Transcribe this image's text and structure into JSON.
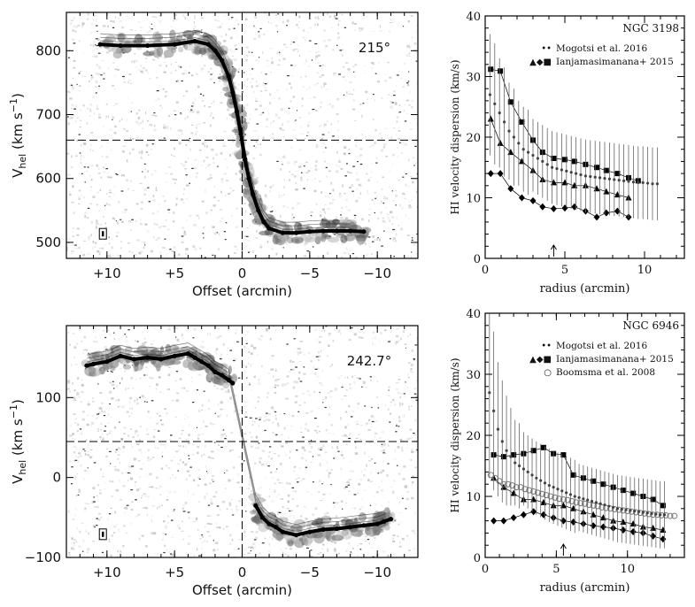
{
  "chart_data": [
    {
      "type": "position-velocity",
      "panel": "top-left",
      "angle_label": "215°",
      "xlabel": "Offset (arcmin)",
      "ylabel_main": "V",
      "ylabel_sub": "hel",
      "ylabel_units": " (km s",
      "ylabel_exp": "−1",
      "ylabel_close": ")",
      "x_ticks": [
        10,
        5,
        0,
        -5,
        -10
      ],
      "x_tick_labels": [
        "+10",
        "+5",
        "0",
        "−5",
        "−10"
      ],
      "xlim": [
        13,
        -13
      ],
      "y_ticks": [
        500,
        600,
        700,
        800
      ],
      "y_tick_labels": [
        "500",
        "600",
        "700",
        "800"
      ],
      "ylim": [
        475,
        860
      ],
      "systemic_velocity": 660,
      "rotation_curve": {
        "x": [
          10.5,
          9,
          7,
          5,
          3.5,
          2.5,
          2,
          1.5,
          1,
          0.7,
          0.4,
          0.1,
          -0.2,
          -0.5,
          -0.8,
          -1.2,
          -1.6,
          -2,
          -3,
          -4,
          -5,
          -6,
          -7,
          -8,
          -9
        ],
        "y": [
          810,
          808,
          808,
          810,
          815,
          810,
          800,
          785,
          760,
          735,
          705,
          670,
          630,
          600,
          575,
          550,
          532,
          522,
          515,
          515,
          517,
          518,
          518,
          518,
          517
        ]
      },
      "grid": false
    },
    {
      "type": "scatter",
      "panel": "top-right",
      "title": "NGC 3198",
      "xlabel": "radius (arcmin)",
      "ylabel": "HI velocity dispersion (km/s)",
      "x_ticks": [
        0,
        5,
        10
      ],
      "y_ticks": [
        0,
        10,
        20,
        30,
        40
      ],
      "xlim": [
        0,
        12.5
      ],
      "ylim": [
        0,
        40
      ],
      "arrow_x": 4.3,
      "legend": [
        {
          "label": "Mogotsi et al. 2016",
          "symbols": "••"
        },
        {
          "label": "Ianjamasimanana+ 2015",
          "symbols": "▲◆■"
        }
      ],
      "legend_position": "top-right",
      "series": [
        {
          "marker": "square",
          "x": [
            0.35,
            0.95,
            1.6,
            2.3,
            3.0,
            3.6,
            4.3,
            5.0,
            5.6,
            6.3,
            7.0,
            7.6,
            8.3,
            9.0,
            9.6
          ],
          "y": [
            31.2,
            30.9,
            25.8,
            22.5,
            19.5,
            17.5,
            16.5,
            16.3,
            16.0,
            15.5,
            15.0,
            14.5,
            14.0,
            13.3,
            12.8
          ]
        },
        {
          "marker": "triangle",
          "x": [
            0.35,
            0.95,
            1.6,
            2.3,
            3.0,
            3.6,
            4.3,
            5.0,
            5.6,
            6.3,
            7.0,
            7.6,
            8.3,
            9.0
          ],
          "y": [
            23,
            19,
            17.5,
            16,
            14.5,
            13,
            12.5,
            12.5,
            12,
            12,
            11.5,
            11,
            10.5,
            10
          ]
        },
        {
          "marker": "diamond",
          "x": [
            0.35,
            0.95,
            1.6,
            2.3,
            3.0,
            3.6,
            4.3,
            5.0,
            5.6,
            6.3,
            7.0,
            7.6,
            8.3,
            9.0
          ],
          "y": [
            14,
            14,
            11.5,
            10,
            9.5,
            8.5,
            8.2,
            8.3,
            8.5,
            7.8,
            6.8,
            7.5,
            7.8,
            6.8
          ]
        },
        {
          "marker": "dot",
          "x": [
            0.3,
            0.6,
            0.9,
            1.2,
            1.5,
            1.8,
            2.1,
            2.4,
            2.7,
            3.0,
            3.3,
            3.6,
            3.9,
            4.2,
            4.5,
            4.8,
            5.1,
            5.4,
            5.7,
            6.0,
            6.3,
            6.6,
            6.9,
            7.2,
            7.5,
            7.8,
            8.1,
            8.4,
            8.7,
            9.0,
            9.3,
            9.6,
            9.9,
            10.2,
            10.5,
            10.8
          ],
          "y": [
            27,
            25.5,
            24,
            22.5,
            21,
            20,
            19,
            18,
            17.5,
            17,
            16.5,
            16,
            15.5,
            15,
            14.8,
            14.6,
            14.4,
            14.2,
            14.0,
            13.8,
            13.6,
            13.5,
            13.4,
            13.3,
            13.2,
            13.1,
            13.0,
            12.9,
            12.8,
            12.7,
            12.6,
            12.5,
            12.5,
            12.4,
            12.3,
            12.3
          ],
          "err": [
            10,
            10,
            9,
            9,
            8,
            8,
            7,
            7,
            7,
            6,
            6,
            6,
            6,
            6,
            6,
            6,
            6,
            6,
            6,
            6,
            6,
            6,
            6,
            6,
            6,
            6,
            6,
            6,
            6,
            6,
            6,
            6,
            6,
            6,
            6,
            6
          ]
        }
      ],
      "grid": false
    },
    {
      "type": "position-velocity",
      "panel": "bottom-left",
      "angle_label": "242.7°",
      "xlabel": "Offset (arcmin)",
      "ylabel_main": "V",
      "ylabel_sub": "hel",
      "ylabel_units": " (km s",
      "ylabel_exp": "−1",
      "ylabel_close": ")",
      "x_ticks": [
        10,
        5,
        0,
        -5,
        -10
      ],
      "x_tick_labels": [
        "+10",
        "+5",
        "0",
        "−5",
        "−10"
      ],
      "xlim": [
        13,
        -13
      ],
      "y_ticks": [
        -100,
        0,
        100
      ],
      "y_tick_labels": [
        "−100",
        "0",
        "100"
      ],
      "ylim": [
        -100,
        190
      ],
      "systemic_velocity": 45,
      "rotation_curve": {
        "x": [
          11.5,
          11,
          10,
          9,
          8,
          7,
          6,
          5,
          4,
          3.5,
          3,
          2.5,
          2,
          1.5,
          1,
          0.7,
          -1,
          -1.5,
          -2,
          -2.5,
          -3,
          -4,
          -5,
          -6,
          -7,
          -8,
          -9,
          -10,
          -10.5,
          -11
        ],
        "y": [
          140,
          142,
          145,
          152,
          148,
          150,
          148,
          152,
          155,
          150,
          145,
          140,
          132,
          128,
          122,
          118,
          -35,
          -50,
          -58,
          -62,
          -68,
          -72,
          -68,
          -65,
          -64,
          -62,
          -60,
          -58,
          -55,
          -52
        ]
      },
      "grid": false
    },
    {
      "type": "scatter",
      "panel": "bottom-right",
      "title": "NGC 6946",
      "xlabel": "radius (arcmin)",
      "ylabel": "HI velocity dispersion (km/s)",
      "x_ticks": [
        0,
        5,
        10
      ],
      "y_ticks": [
        0,
        10,
        20,
        30,
        40
      ],
      "xlim": [
        0,
        14
      ],
      "ylim": [
        0,
        40
      ],
      "arrow_x": 5.5,
      "legend": [
        {
          "label": "Mogotsi et al. 2016",
          "symbols": "••"
        },
        {
          "label": "Ianjamasimanana+ 2015",
          "symbols": "▲◆■"
        },
        {
          "label": "Boomsma et al. 2008",
          "symbols": "○"
        }
      ],
      "legend_position": "top-right",
      "series": [
        {
          "marker": "square",
          "x": [
            0.6,
            1.3,
            2.0,
            2.7,
            3.4,
            4.1,
            4.8,
            5.5,
            6.2,
            6.9,
            7.6,
            8.3,
            9.0,
            9.7,
            10.4,
            11.1,
            11.8,
            12.5
          ],
          "y": [
            16.8,
            16.5,
            16.8,
            17.0,
            17.5,
            18.0,
            17.0,
            16.8,
            13.5,
            13.0,
            12.5,
            12.0,
            11.5,
            11.0,
            10.5,
            10.0,
            9.5,
            8.5
          ]
        },
        {
          "marker": "triangle",
          "x": [
            0.6,
            1.3,
            2.0,
            2.7,
            3.4,
            4.1,
            4.8,
            5.5,
            6.2,
            6.9,
            7.6,
            8.3,
            9.0,
            9.7,
            10.4,
            11.1,
            11.8,
            12.5
          ],
          "y": [
            13,
            11.5,
            10.5,
            9.5,
            9.5,
            9.0,
            8.5,
            8.5,
            8.0,
            7.5,
            7.0,
            6.5,
            6.0,
            5.8,
            5.5,
            5.0,
            4.8,
            4.5
          ]
        },
        {
          "marker": "diamond",
          "x": [
            0.6,
            1.3,
            2.0,
            2.7,
            3.4,
            4.1,
            4.8,
            5.5,
            6.2,
            6.9,
            7.6,
            8.3,
            9.0,
            9.7,
            10.4,
            11.1,
            11.8,
            12.5
          ],
          "y": [
            6.0,
            6.0,
            6.5,
            7.0,
            7.5,
            7.0,
            6.5,
            6.0,
            5.8,
            5.5,
            5.2,
            5.0,
            4.8,
            4.5,
            4.2,
            4.0,
            3.5,
            3.0
          ]
        },
        {
          "marker": "circle",
          "x": [
            0.4,
            0.7,
            1.0,
            1.3,
            1.6,
            1.9,
            2.2,
            2.5,
            2.8,
            3.1,
            3.4,
            3.7,
            4.0,
            4.3,
            4.6,
            4.9,
            5.2,
            5.5,
            5.8,
            6.1,
            6.4,
            6.7,
            7.0,
            7.3,
            7.6,
            7.9,
            8.2,
            8.5,
            8.8,
            9.1,
            9.4,
            9.7,
            10.0,
            10.3,
            10.6,
            10.9,
            11.2,
            11.5,
            11.8,
            12.1,
            12.4,
            12.7,
            13.0,
            13.3
          ],
          "y": [
            13.5,
            13.0,
            12.5,
            12.0,
            12.0,
            11.8,
            11.5,
            11.5,
            11.2,
            11.0,
            10.8,
            10.6,
            10.4,
            10.2,
            10.0,
            9.8,
            9.6,
            9.5,
            9.4,
            9.2,
            9.0,
            8.9,
            8.8,
            8.6,
            8.5,
            8.4,
            8.2,
            8.1,
            8.0,
            7.9,
            7.8,
            7.7,
            7.6,
            7.5,
            7.4,
            7.3,
            7.2,
            7.1,
            7.0,
            7.0,
            6.9,
            6.9,
            6.8,
            6.8
          ]
        },
        {
          "marker": "dot",
          "x": [
            0.3,
            0.6,
            0.9,
            1.2,
            1.5,
            1.8,
            2.1,
            2.4,
            2.7,
            3.0,
            3.3,
            3.6,
            3.9,
            4.2,
            4.5,
            4.8,
            5.1,
            5.4,
            5.7,
            6.0,
            6.3,
            6.6,
            6.9,
            7.2,
            7.5,
            7.8,
            8.1,
            8.4,
            8.7,
            9.0,
            9.3,
            9.6,
            9.9,
            10.2,
            10.5,
            10.8,
            11.1,
            11.4,
            11.7,
            12.0,
            12.3,
            12.6
          ],
          "y": [
            27,
            24,
            21,
            19,
            17.5,
            16.5,
            15.5,
            15,
            14.5,
            14,
            13.5,
            13,
            12.6,
            12.2,
            11.8,
            11.5,
            11.2,
            10.9,
            10.6,
            10.3,
            10.0,
            9.8,
            9.6,
            9.4,
            9.2,
            9.0,
            8.8,
            8.6,
            8.4,
            8.2,
            8.0,
            7.9,
            7.8,
            7.7,
            7.6,
            7.5,
            7.4,
            7.3,
            7.2,
            7.1,
            7.0,
            7.0
          ],
          "err": [
            14,
            13,
            11,
            10,
            9,
            8,
            7,
            7,
            6,
            6,
            6,
            6,
            6,
            6,
            6,
            6,
            6,
            6,
            6,
            6,
            6,
            5.5,
            5.5,
            5.5,
            5.5,
            5.5,
            5.5,
            5.5,
            5.5,
            5.5,
            5.5,
            5.5,
            5.5,
            5.5,
            5.5,
            5.5,
            5.5,
            5.5,
            5.5,
            5.5,
            5.5,
            5.5
          ]
        }
      ],
      "grid": false
    }
  ]
}
